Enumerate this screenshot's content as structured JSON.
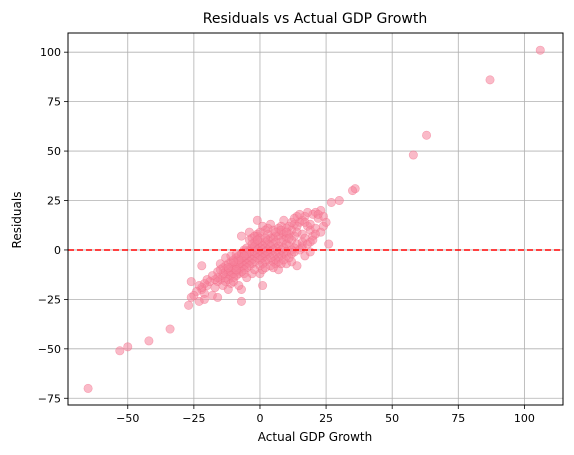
{
  "chart_data": {
    "type": "scatter",
    "title": "Residuals vs Actual GDP Growth",
    "xlabel": "Actual GDP Growth",
    "ylabel": "Residuals",
    "xlim": [
      -72.6,
      114.6
    ],
    "ylim": [
      -78.4,
      109.7
    ],
    "xticks": [
      -50,
      -25,
      0,
      25,
      50,
      75,
      100
    ],
    "yticks": [
      -75,
      -50,
      -25,
      0,
      25,
      50,
      75,
      100
    ],
    "grid": true,
    "reference_line": {
      "y": 0,
      "style": "dashed",
      "color": "#ff0000"
    },
    "marker_color": "#f6819b",
    "marker_edge": "#f26d89",
    "marker_alpha": 0.55,
    "points": [
      [
        106,
        101
      ],
      [
        87,
        86
      ],
      [
        63,
        58
      ],
      [
        58,
        48
      ],
      [
        36,
        31
      ],
      [
        35,
        30
      ],
      [
        30,
        25
      ],
      [
        27,
        24
      ],
      [
        23,
        20
      ],
      [
        21,
        19
      ],
      [
        20,
        18
      ],
      [
        17,
        17
      ],
      [
        22,
        16
      ],
      [
        16,
        15
      ],
      [
        15,
        14
      ],
      [
        13,
        13
      ],
      [
        18,
        12
      ],
      [
        14,
        12
      ],
      [
        10,
        11
      ],
      [
        12,
        10
      ],
      [
        8,
        9
      ],
      [
        11,
        8
      ],
      [
        9,
        8
      ],
      [
        16,
        8
      ],
      [
        6,
        7
      ],
      [
        13,
        7
      ],
      [
        7,
        7
      ],
      [
        4,
        6
      ],
      [
        10,
        6
      ],
      [
        5,
        6
      ],
      [
        3,
        5
      ],
      [
        9,
        5
      ],
      [
        12,
        5
      ],
      [
        0,
        4
      ],
      [
        2,
        4
      ],
      [
        6,
        4
      ],
      [
        8,
        4
      ],
      [
        -1,
        3
      ],
      [
        3,
        3
      ],
      [
        5,
        3
      ],
      [
        10,
        3
      ],
      [
        14,
        3
      ],
      [
        -2,
        2
      ],
      [
        1,
        2
      ],
      [
        4,
        2
      ],
      [
        7,
        2
      ],
      [
        11,
        2
      ],
      [
        16,
        2
      ],
      [
        -3,
        1
      ],
      [
        0,
        1
      ],
      [
        2,
        1
      ],
      [
        6,
        1
      ],
      [
        9,
        1
      ],
      [
        13,
        1
      ],
      [
        -4,
        0
      ],
      [
        -1,
        0
      ],
      [
        1,
        0
      ],
      [
        3,
        0
      ],
      [
        5,
        0
      ],
      [
        8,
        0
      ],
      [
        12,
        0
      ],
      [
        -6,
        -1
      ],
      [
        -2,
        -1
      ],
      [
        0,
        -1
      ],
      [
        2,
        -1
      ],
      [
        4,
        -1
      ],
      [
        7,
        -1
      ],
      [
        10,
        -1
      ],
      [
        -7,
        -2
      ],
      [
        -3,
        -2
      ],
      [
        -1,
        -2
      ],
      [
        1,
        -2
      ],
      [
        3,
        -2
      ],
      [
        6,
        -2
      ],
      [
        9,
        -2
      ],
      [
        -8,
        -3
      ],
      [
        -5,
        -3
      ],
      [
        -2,
        -3
      ],
      [
        0,
        -3
      ],
      [
        2,
        -3
      ],
      [
        5,
        -3
      ],
      [
        8,
        -3
      ],
      [
        -9,
        -4
      ],
      [
        -6,
        -4
      ],
      [
        -4,
        -4
      ],
      [
        -1,
        -4
      ],
      [
        1,
        -4
      ],
      [
        4,
        -4
      ],
      [
        7,
        -4
      ],
      [
        -10,
        -5
      ],
      [
        -7,
        -5
      ],
      [
        -5,
        -5
      ],
      [
        -3,
        -5
      ],
      [
        0,
        -5
      ],
      [
        3,
        -5
      ],
      [
        6,
        -5
      ],
      [
        -11,
        -6
      ],
      [
        -8,
        -6
      ],
      [
        -6,
        -6
      ],
      [
        -4,
        -6
      ],
      [
        -2,
        -6
      ],
      [
        2,
        -6
      ],
      [
        5,
        -6
      ],
      [
        -12,
        -7
      ],
      [
        -9,
        -7
      ],
      [
        -7,
        -7
      ],
      [
        -5,
        -7
      ],
      [
        -3,
        -7
      ],
      [
        1,
        -7
      ],
      [
        -13,
        -8
      ],
      [
        -10,
        -8
      ],
      [
        -8,
        -8
      ],
      [
        -6,
        -8
      ],
      [
        -4,
        -8
      ],
      [
        0,
        -8
      ],
      [
        -14,
        -9
      ],
      [
        -11,
        -9
      ],
      [
        -9,
        -9
      ],
      [
        -7,
        -9
      ],
      [
        -5,
        -9
      ],
      [
        -12,
        -10
      ],
      [
        -10,
        -10
      ],
      [
        -8,
        -10
      ],
      [
        -6,
        -10
      ],
      [
        -13,
        -11
      ],
      [
        -11,
        -11
      ],
      [
        -9,
        -11
      ],
      [
        -7,
        -11
      ],
      [
        -12,
        -12
      ],
      [
        -10,
        -12
      ],
      [
        -8,
        -12
      ],
      [
        -14,
        -13
      ],
      [
        -11,
        -13
      ],
      [
        -9,
        -13
      ],
      [
        -13,
        -14
      ],
      [
        -10,
        -14
      ],
      [
        -15,
        -15
      ],
      [
        -12,
        -15
      ],
      [
        -16,
        -16
      ],
      [
        -13,
        -16
      ],
      [
        -11,
        -17
      ],
      [
        -14,
        -18
      ],
      [
        -20,
        -18
      ],
      [
        -17,
        -19
      ],
      [
        -22,
        -20
      ],
      [
        -12,
        -20
      ],
      [
        -21,
        -22
      ],
      [
        -18,
        -23
      ],
      [
        -16,
        -24
      ],
      [
        -21,
        -25
      ],
      [
        -23,
        -26
      ],
      [
        -27,
        -28
      ],
      [
        -34,
        -40
      ],
      [
        -42,
        -46
      ],
      [
        -50,
        -49
      ],
      [
        -53,
        -51
      ],
      [
        -65,
        -70
      ],
      [
        -26,
        -16
      ],
      [
        -22,
        -8
      ],
      [
        -8,
        -7
      ],
      [
        -7,
        -4
      ],
      [
        -7,
        -2
      ],
      [
        -6,
        0
      ],
      [
        -5,
        1
      ],
      [
        -4,
        -1
      ],
      [
        -2,
        2
      ],
      [
        -2,
        4
      ],
      [
        -1,
        7
      ],
      [
        -1,
        8
      ],
      [
        -1,
        15
      ],
      [
        -4,
        9
      ],
      [
        -7,
        7
      ],
      [
        -9,
        -10
      ],
      [
        -6,
        -12
      ],
      [
        -10,
        -16
      ],
      [
        -7,
        -20
      ],
      [
        -7,
        -26
      ],
      [
        1,
        -18
      ],
      [
        6,
        -7
      ],
      [
        7,
        -10
      ],
      [
        10,
        -7
      ],
      [
        12,
        -6
      ],
      [
        14,
        -8
      ],
      [
        17,
        -3
      ],
      [
        19,
        -1
      ],
      [
        16,
        4
      ],
      [
        17,
        6
      ],
      [
        20,
        7
      ],
      [
        19,
        10
      ],
      [
        21,
        11
      ],
      [
        24,
        17
      ],
      [
        26,
        3
      ],
      [
        14,
        9
      ],
      [
        11,
        12
      ],
      [
        12,
        14
      ],
      [
        9,
        15
      ],
      [
        14,
        17
      ],
      [
        18,
        19
      ],
      [
        22,
        18
      ],
      [
        4,
        13
      ],
      [
        2,
        10
      ],
      [
        1,
        12
      ],
      [
        5,
        10
      ],
      [
        7,
        11
      ],
      [
        8,
        12
      ],
      [
        3,
        8
      ],
      [
        0,
        9
      ],
      [
        -3,
        6
      ],
      [
        -2,
        7
      ],
      [
        -4,
        5
      ],
      [
        -3,
        3
      ],
      [
        -5,
        -2
      ],
      [
        -6,
        -3
      ],
      [
        -8,
        -5
      ],
      [
        -9,
        -2
      ],
      [
        -10,
        -6
      ],
      [
        -11,
        -3
      ],
      [
        -12,
        -9
      ],
      [
        -13,
        -4
      ],
      [
        -14,
        -12
      ],
      [
        -15,
        -7
      ],
      [
        -15,
        -10
      ],
      [
        -16,
        -11
      ],
      [
        -16,
        -14
      ],
      [
        -17,
        -15
      ],
      [
        -18,
        -13
      ],
      [
        -19,
        -16
      ],
      [
        -20,
        -15
      ],
      [
        -21,
        -17
      ],
      [
        -22,
        -19
      ],
      [
        -23,
        -18
      ],
      [
        -24,
        -21
      ],
      [
        -25,
        -23
      ],
      [
        -26,
        -24
      ],
      [
        -8,
        -18
      ],
      [
        -5,
        -14
      ],
      [
        -3,
        -12
      ],
      [
        -2,
        -10
      ],
      [
        0,
        -12
      ],
      [
        1,
        -10
      ],
      [
        2,
        -9
      ],
      [
        4,
        -8
      ],
      [
        5,
        -9
      ],
      [
        7,
        -6
      ],
      [
        8,
        -7
      ],
      [
        9,
        -5
      ],
      [
        10,
        -3
      ],
      [
        11,
        -4
      ],
      [
        12,
        -2
      ],
      [
        13,
        -1
      ],
      [
        15,
        0
      ],
      [
        16,
        1
      ],
      [
        18,
        3
      ],
      [
        19,
        4
      ],
      [
        20,
        5
      ],
      [
        21,
        8
      ],
      [
        23,
        9
      ],
      [
        24,
        12
      ],
      [
        25,
        14
      ],
      [
        13,
        16
      ],
      [
        15,
        18
      ],
      [
        17,
        14
      ],
      [
        19,
        13
      ],
      [
        6,
        9
      ],
      [
        8,
        10
      ],
      [
        10,
        9
      ],
      [
        11,
        6
      ],
      [
        3,
        11
      ],
      [
        2,
        6
      ],
      [
        0,
        6
      ],
      [
        -1,
        5
      ]
    ]
  }
}
